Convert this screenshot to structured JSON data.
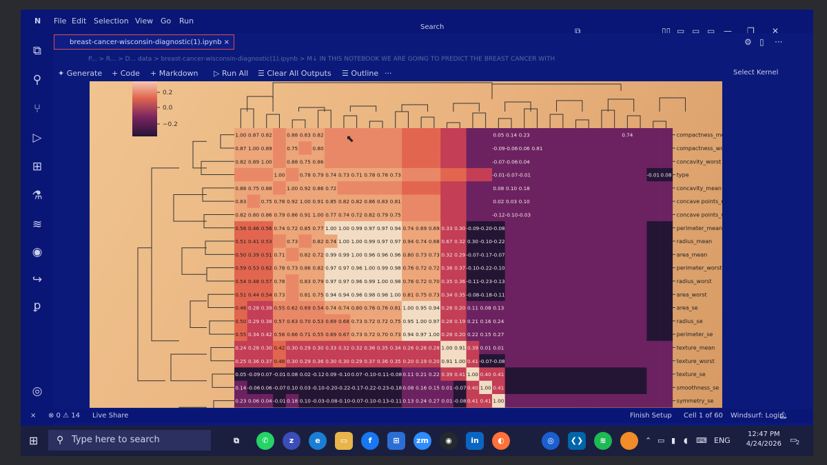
{
  "menu": [
    "File",
    "Edit",
    "Selection",
    "View",
    "Go",
    "Run"
  ],
  "search_label": "Search",
  "tab": {
    "label": "breast-cancer-wisconsin-diagnostic(1).ipynb",
    "close": "×"
  },
  "breadcrumb": "P... > R... > D... data > breast-cancer-wisconsin-diagnostic(1).ipynb > M↓ IN THIS NOTEBOOK WE ARE GOING TO PREDICT THE BREAST CANCER WITH",
  "toolbar": {
    "generate": "✦ Generate",
    "code": "+ Code",
    "markdown": "+ Markdown",
    "run_all": "▷ Run All",
    "clear_outputs": "☰ Clear All Outputs",
    "outline": "☰ Outline",
    "more": "···",
    "select_kernel": "Select Kernel"
  },
  "colorbar": {
    "ticks": [
      "0.2",
      "0.0",
      "−0.2"
    ]
  },
  "heatmap": {
    "row_labels": [
      "compactness_mean",
      "compactness_worst",
      "concavity_worst",
      "type",
      "concavity_mean",
      "concave points_mean",
      "concave points_worst",
      "perimeter_mean",
      "radius_mean",
      "area_mean",
      "perimeter_worst",
      "radius_worst",
      "area_worst",
      "area_se",
      "radius_se",
      "perimeter_se",
      "texture_mean",
      "texture_worst",
      "texture_se",
      "smoothness_se",
      "symmetry_se"
    ],
    "rows": [
      [
        "1.00",
        "0.87",
        "0.82",
        "",
        "0.88",
        "0.83",
        "0.82"
      ],
      [
        "0.87",
        "1.00",
        "0.89",
        "",
        "0.75",
        "",
        "0.80"
      ],
      [
        "0.82",
        "0.89",
        "1.00",
        "",
        "0.88",
        "0.75",
        "0.86"
      ],
      [
        "",
        "",
        "",
        "1.00",
        "",
        "0.78",
        "0.79",
        "0.74",
        "0.73",
        "0.71",
        "0.78",
        "0.78",
        "0.73"
      ],
      [
        "0.88",
        "0.75",
        "0.88",
        "",
        "1.00",
        "0.92",
        "0.86",
        "0.72"
      ],
      [
        "0.83",
        "",
        "0.75",
        "0.78",
        "0.92",
        "1.00",
        "0.91",
        "0.85",
        "0.82",
        "0.82",
        "0.86",
        "0.83",
        "0.81"
      ],
      [
        "0.82",
        "0.80",
        "0.86",
        "0.79",
        "0.86",
        "0.91",
        "1.00",
        "0.77",
        "0.74",
        "0.72",
        "0.82",
        "0.79",
        "0.75"
      ],
      [
        "0.56",
        "0.46",
        "0.56",
        "0.74",
        "0.72",
        "0.85",
        "0.77",
        "1.00",
        "1.00",
        "0.99",
        "0.97",
        "0.97",
        "0.94",
        "0.74",
        "0.69",
        "0.69",
        "0.33",
        "0.30",
        "-0.09",
        "-0.20",
        "-0.08"
      ],
      [
        "0.51",
        "0.41",
        "0.53",
        "",
        "0.73",
        "",
        "0.82",
        "0.74",
        "1.00",
        "1.00",
        "0.99",
        "0.97",
        "0.97",
        "0.94",
        "0.74",
        "0.68",
        "0.67",
        "0.32",
        "0.30",
        "-0.10",
        "-0.22"
      ],
      [
        "0.50",
        "0.39",
        "0.51",
        "0.71",
        "",
        "0.82",
        "0.72",
        "0.99",
        "0.99",
        "1.00",
        "0.96",
        "0.96",
        "0.96",
        "0.80",
        "0.73",
        "0.73",
        "0.32",
        "0.29",
        "-0.07",
        "-0.17",
        "-0.07"
      ],
      [
        "0.59",
        "0.53",
        "0.62",
        "0.78",
        "0.73",
        "0.86",
        "0.82",
        "0.97",
        "0.97",
        "0.96",
        "1.00",
        "0.99",
        "0.98",
        "0.76",
        "0.72",
        "0.72",
        "0.36",
        "0.37",
        "-0.10",
        "-0.22",
        "-0.10"
      ],
      [
        "0.54",
        "0.48",
        "0.57",
        "0.78",
        "",
        "0.83",
        "0.79",
        "0.97",
        "0.97",
        "0.96",
        "0.99",
        "1.00",
        "0.98",
        "0.76",
        "0.72",
        "0.70",
        "0.35",
        "0.36",
        "-0.11",
        "-0.23",
        "-0.13"
      ],
      [
        "0.51",
        "0.44",
        "0.54",
        "0.73",
        "",
        "0.81",
        "0.75",
        "0.94",
        "0.94",
        "0.96",
        "0.98",
        "0.98",
        "1.00",
        "0.81",
        "0.75",
        "0.73",
        "0.34",
        "0.35",
        "-0.08",
        "-0.18",
        "-0.11"
      ],
      [
        "0.46",
        "0.28",
        "0.39",
        "0.55",
        "0.62",
        "0.69",
        "0.54",
        "0.74",
        "0.74",
        "0.80",
        "0.76",
        "0.76",
        "0.81",
        "1.00",
        "0.95",
        "0.94",
        "0.26",
        "0.20",
        "0.11",
        "0.08",
        "0.13"
      ],
      [
        "0.50",
        "0.29",
        "0.38",
        "0.57",
        "0.63",
        "0.70",
        "0.53",
        "0.69",
        "0.68",
        "0.73",
        "0.72",
        "0.72",
        "0.75",
        "0.95",
        "1.00",
        "0.97",
        "0.28",
        "0.19",
        "0.21",
        "0.16",
        "0.24"
      ],
      [
        "0.55",
        "0.34",
        "0.42",
        "0.56",
        "0.66",
        "0.71",
        "0.55",
        "0.69",
        "0.67",
        "0.73",
        "0.72",
        "0.70",
        "0.73",
        "0.94",
        "0.97",
        "1.00",
        "0.28",
        "0.20",
        "0.22",
        "0.15",
        "0.27"
      ],
      [
        "0.24",
        "0.28",
        "0.30",
        "0.42",
        "0.30",
        "0.29",
        "0.30",
        "0.33",
        "0.32",
        "0.32",
        "0.36",
        "0.35",
        "0.34",
        "0.26",
        "0.28",
        "0.28",
        "1.00",
        "0.91",
        "0.39",
        "0.01",
        "0.01"
      ],
      [
        "0.25",
        "0.36",
        "0.37",
        "0.46",
        "0.30",
        "0.29",
        "0.36",
        "0.30",
        "0.30",
        "0.29",
        "0.37",
        "0.36",
        "0.35",
        "0.20",
        "0.19",
        "0.20",
        "0.91",
        "1.00",
        "0.41",
        "-0.07",
        "-0.08"
      ],
      [
        "0.05",
        "-0.09",
        "0.07",
        "-0.01",
        "0.08",
        "0.02",
        "-0.12",
        "0.09",
        "-0.10",
        "0.07",
        "-0.10",
        "-0.11",
        "-0.08",
        "0.11",
        "0.21",
        "0.22",
        "0.39",
        "0.41",
        "1.00",
        "0.40",
        "0.41"
      ],
      [
        "0.14",
        "-0.06",
        "0.06",
        "-0.07",
        "0.10",
        "0.03",
        "-0.10",
        "-0.20",
        "-0.22",
        "-0.17",
        "-0.22",
        "-0.23",
        "-0.18",
        "0.08",
        "0.16",
        "0.15",
        "0.01",
        "-0.07",
        "0.40",
        "1.00",
        "0.41"
      ],
      [
        "0.23",
        "0.06",
        "0.04",
        "-0.01",
        "0.18",
        "0.10",
        "-0.03",
        "-0.08",
        "-0.10",
        "-0.07",
        "-0.10",
        "-0.13",
        "-0.11",
        "0.13",
        "0.24",
        "0.27",
        "0.01",
        "-0.08",
        "0.41",
        "0.41",
        "1.00"
      ]
    ],
    "extra": [
      {
        "row": 0,
        "col": 20,
        "text": "0.05"
      },
      {
        "row": 0,
        "col": 21,
        "text": "0.14"
      },
      {
        "row": 0,
        "col": 22,
        "text": "0.23"
      },
      {
        "row": 0,
        "col": 30,
        "text": "0.74"
      },
      {
        "row": 1,
        "col": 20,
        "text": "-0.09"
      },
      {
        "row": 1,
        "col": 21,
        "text": "-0.06"
      },
      {
        "row": 1,
        "col": 22,
        "text": "0.06"
      },
      {
        "row": 1,
        "col": 23,
        "text": "0.81"
      },
      {
        "row": 2,
        "col": 20,
        "text": "-0.07"
      },
      {
        "row": 2,
        "col": 21,
        "text": "-0.06"
      },
      {
        "row": 2,
        "col": 22,
        "text": "0.04"
      },
      {
        "row": 3,
        "col": 20,
        "text": "-0.01"
      },
      {
        "row": 3,
        "col": 21,
        "text": "-0.07"
      },
      {
        "row": 3,
        "col": 22,
        "text": "-0.01"
      },
      {
        "row": 3,
        "col": 32,
        "text": "-0.01"
      },
      {
        "row": 3,
        "col": 33,
        "text": "0.08"
      },
      {
        "row": 4,
        "col": 20,
        "text": "0.08"
      },
      {
        "row": 4,
        "col": 21,
        "text": "0.10"
      },
      {
        "row": 4,
        "col": 22,
        "text": "0.18"
      },
      {
        "row": 5,
        "col": 20,
        "text": "0.02"
      },
      {
        "row": 5,
        "col": 21,
        "text": "0.03"
      },
      {
        "row": 5,
        "col": 22,
        "text": "0.10"
      },
      {
        "row": 6,
        "col": 20,
        "text": "-0.12"
      },
      {
        "row": 6,
        "col": 21,
        "text": "-0.10"
      },
      {
        "row": 6,
        "col": 22,
        "text": "-0.03"
      }
    ],
    "fill_levels": [
      [
        2,
        2,
        2,
        3,
        2,
        2,
        2,
        3,
        3,
        3,
        3,
        3,
        3,
        4,
        4,
        4,
        5,
        5,
        6,
        6,
        6,
        6,
        6,
        6,
        6,
        6,
        6,
        6,
        6,
        6,
        6,
        6,
        6,
        6
      ],
      [
        2,
        2,
        2,
        3,
        2,
        3,
        2,
        3,
        3,
        3,
        3,
        3,
        3,
        4,
        4,
        4,
        5,
        5,
        6,
        6,
        6,
        6,
        6,
        6,
        6,
        6,
        6,
        6,
        6,
        6,
        6,
        6,
        6,
        6
      ],
      [
        2,
        2,
        2,
        3,
        2,
        2,
        2,
        3,
        3,
        3,
        3,
        3,
        3,
        4,
        4,
        4,
        5,
        5,
        6,
        6,
        6,
        6,
        6,
        6,
        6,
        6,
        6,
        6,
        6,
        6,
        6,
        6,
        6,
        6
      ],
      [
        3,
        3,
        3,
        2,
        3,
        2,
        2,
        2,
        2,
        2,
        2,
        2,
        2,
        3,
        3,
        3,
        4,
        4,
        5,
        5,
        6,
        6,
        6,
        6,
        6,
        6,
        6,
        6,
        6,
        6,
        6,
        6,
        7,
        7
      ],
      [
        2,
        2,
        2,
        3,
        2,
        2,
        2,
        2,
        3,
        3,
        3,
        3,
        3,
        4,
        4,
        4,
        5,
        5,
        6,
        6,
        6,
        6,
        6,
        6,
        6,
        6,
        6,
        6,
        6,
        6,
        6,
        6,
        6,
        6
      ],
      [
        2,
        3,
        2,
        2,
        2,
        2,
        2,
        2,
        2,
        2,
        2,
        2,
        2,
        3,
        3,
        3,
        5,
        5,
        6,
        6,
        6,
        6,
        6,
        6,
        6,
        6,
        6,
        6,
        6,
        6,
        6,
        6,
        6,
        6
      ],
      [
        2,
        2,
        2,
        2,
        2,
        2,
        2,
        2,
        2,
        2,
        2,
        2,
        2,
        3,
        3,
        3,
        5,
        5,
        6,
        6,
        6,
        6,
        6,
        6,
        6,
        6,
        6,
        6,
        6,
        6,
        6,
        6,
        6,
        6
      ],
      [
        4,
        4,
        4,
        2,
        2,
        2,
        2,
        1,
        1,
        1,
        1,
        1,
        1,
        2,
        2,
        2,
        5,
        5,
        7,
        7,
        7,
        6,
        6,
        6,
        6,
        6,
        6,
        6,
        6,
        6,
        6,
        6,
        7,
        7
      ],
      [
        4,
        4,
        4,
        3,
        2,
        3,
        2,
        2,
        1,
        1,
        1,
        1,
        1,
        2,
        2,
        2,
        5,
        5,
        7,
        7,
        7,
        6,
        6,
        6,
        6,
        6,
        6,
        6,
        6,
        6,
        6,
        6,
        7,
        7
      ],
      [
        4,
        4,
        4,
        2,
        3,
        2,
        2,
        1,
        1,
        1,
        1,
        1,
        1,
        2,
        2,
        2,
        5,
        5,
        7,
        7,
        7,
        6,
        6,
        6,
        6,
        6,
        6,
        6,
        6,
        6,
        6,
        6,
        7,
        7
      ],
      [
        4,
        4,
        4,
        2,
        2,
        2,
        2,
        1,
        1,
        1,
        1,
        1,
        1,
        2,
        2,
        2,
        5,
        5,
        7,
        7,
        7,
        6,
        6,
        6,
        6,
        6,
        6,
        6,
        6,
        6,
        6,
        6,
        7,
        7
      ],
      [
        4,
        4,
        4,
        2,
        3,
        2,
        2,
        1,
        1,
        1,
        1,
        1,
        1,
        2,
        2,
        2,
        5,
        5,
        7,
        7,
        7,
        6,
        6,
        6,
        6,
        6,
        6,
        6,
        6,
        6,
        6,
        6,
        7,
        7
      ],
      [
        4,
        4,
        4,
        2,
        3,
        2,
        2,
        1,
        1,
        1,
        1,
        1,
        1,
        2,
        2,
        2,
        5,
        5,
        7,
        7,
        7,
        6,
        6,
        6,
        6,
        6,
        6,
        6,
        6,
        6,
        6,
        6,
        7,
        7
      ],
      [
        4,
        5,
        5,
        3,
        3,
        3,
        3,
        2,
        2,
        2,
        2,
        2,
        2,
        1,
        1,
        1,
        5,
        5,
        6,
        6,
        6,
        6,
        6,
        6,
        6,
        6,
        6,
        6,
        6,
        6,
        6,
        6,
        7,
        7
      ],
      [
        4,
        5,
        5,
        3,
        3,
        3,
        3,
        3,
        3,
        2,
        2,
        2,
        2,
        1,
        1,
        1,
        5,
        5,
        6,
        6,
        6,
        6,
        6,
        6,
        6,
        6,
        6,
        6,
        6,
        6,
        6,
        6,
        7,
        7
      ],
      [
        4,
        5,
        5,
        3,
        3,
        3,
        3,
        3,
        3,
        2,
        2,
        2,
        2,
        1,
        1,
        1,
        5,
        5,
        6,
        6,
        6,
        6,
        6,
        6,
        6,
        6,
        6,
        6,
        6,
        6,
        6,
        6,
        7,
        7
      ],
      [
        5,
        5,
        5,
        4,
        5,
        5,
        5,
        5,
        5,
        5,
        5,
        5,
        5,
        5,
        5,
        5,
        1,
        1,
        5,
        6,
        6,
        6,
        6,
        6,
        6,
        6,
        6,
        6,
        6,
        6,
        6,
        6,
        6,
        6
      ],
      [
        5,
        5,
        5,
        4,
        5,
        5,
        5,
        5,
        5,
        5,
        5,
        5,
        5,
        5,
        5,
        5,
        1,
        1,
        5,
        7,
        7,
        6,
        6,
        6,
        6,
        6,
        6,
        6,
        6,
        6,
        6,
        6,
        6,
        6
      ],
      [
        7,
        7,
        7,
        7,
        7,
        7,
        7,
        7,
        7,
        7,
        7,
        7,
        7,
        6,
        6,
        6,
        5,
        5,
        1,
        5,
        5,
        7,
        7,
        7,
        7,
        7,
        7,
        7,
        7,
        7,
        7,
        7,
        6,
        6
      ],
      [
        6,
        7,
        7,
        7,
        7,
        7,
        7,
        7,
        7,
        7,
        7,
        7,
        7,
        6,
        6,
        6,
        6,
        7,
        5,
        1,
        5,
        7,
        7,
        7,
        7,
        7,
        7,
        7,
        7,
        7,
        7,
        7,
        6,
        6
      ],
      [
        6,
        6,
        6,
        7,
        6,
        7,
        7,
        7,
        7,
        7,
        7,
        7,
        7,
        6,
        6,
        6,
        6,
        7,
        5,
        5,
        1,
        6,
        6,
        6,
        6,
        6,
        6,
        6,
        6,
        6,
        6,
        6,
        6,
        6
      ]
    ],
    "palette": [
      "#f6f1ea",
      "#f2ddc4",
      "#eda57a",
      "#e98867",
      "#e2664f",
      "#c43e55",
      "#6c2260",
      "#241535"
    ]
  },
  "statusbar": {
    "problems": "⊗ 0 ⚠ 14",
    "live_share": "Live Share",
    "finish_setup": "Finish Setup",
    "cell_info": "Cell 1 of 60",
    "windsurf": "Windsurf: Login"
  },
  "taskbar": {
    "search_placeholder": "Type here to search",
    "lang": "ENG",
    "time": "12:47 PM",
    "date": "4/24/2026",
    "notification_count": "2"
  }
}
